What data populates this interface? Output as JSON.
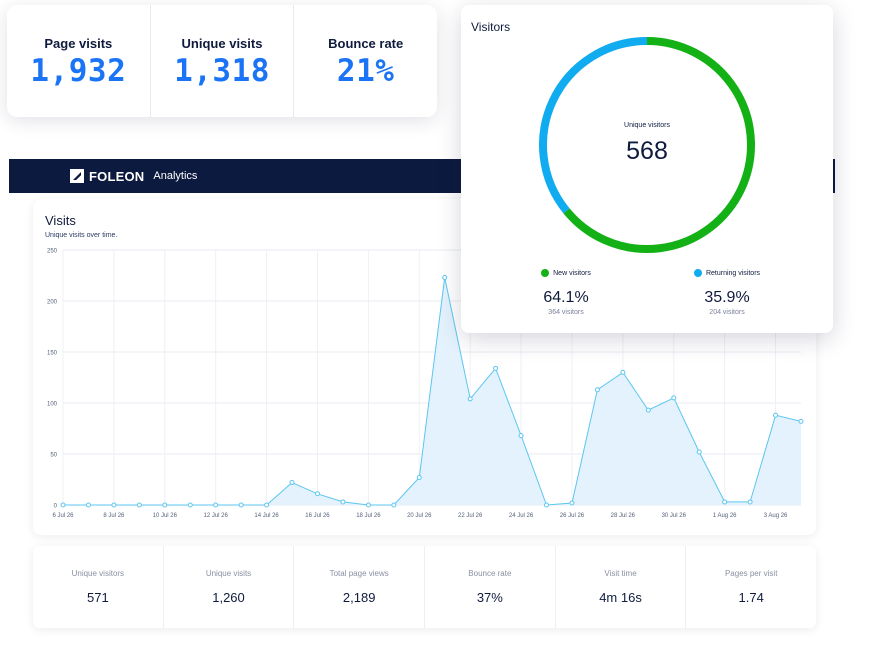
{
  "top_stats": [
    {
      "label": "Page visits",
      "value": "1,932"
    },
    {
      "label": "Unique visits",
      "value": "1,318"
    },
    {
      "label": "Bounce rate",
      "value": "21%"
    }
  ],
  "app_bar": {
    "brand": "FOLEON",
    "section": "Analytics"
  },
  "visits": {
    "title": "Visits",
    "subtitle": "Unique visits over time."
  },
  "visitors": {
    "title": "Visitors",
    "center_label": "Unique visitors",
    "center_value": "568",
    "legend": [
      {
        "label": "New visitors",
        "percent": "64.1%",
        "count": "364 visitors",
        "color": "#13b116"
      },
      {
        "label": "Returning visitors",
        "percent": "35.9%",
        "count": "204 visitors",
        "color": "#11acf0"
      }
    ]
  },
  "bottom_stats": [
    {
      "label": "Unique visitors",
      "value": "571"
    },
    {
      "label": "Unique visits",
      "value": "1,260"
    },
    {
      "label": "Total page views",
      "value": "2,189"
    },
    {
      "label": "Bounce rate",
      "value": "37%"
    },
    {
      "label": "Visit time",
      "value": "4m 16s"
    },
    {
      "label": "Pages per visit",
      "value": "1.74"
    }
  ],
  "colors": {
    "accent": "#1b74f5",
    "navy": "#0d1a3f",
    "line": "#5cc6f0",
    "area": "#e3f2fc",
    "new": "#13b116",
    "returning": "#11acf0"
  },
  "chart_data": {
    "type": "area",
    "title": "Visits",
    "subtitle": "Unique visits over time.",
    "xlabel": "",
    "ylabel": "",
    "ylim": [
      0,
      250
    ],
    "yticks": [
      0,
      50,
      100,
      150,
      200,
      250
    ],
    "x_tick_labels": [
      "6 Jul 26",
      "8 Jul 26",
      "10 Jul 26",
      "12 Jul 26",
      "14 Jul 26",
      "16 Jul 26",
      "18 Jul 26",
      "20 Jul 26",
      "22 Jul 26",
      "24 Jul 26",
      "26 Jul 26",
      "28 Jul 26",
      "30 Jul 26",
      "1 Aug 26",
      "3 Aug 26"
    ],
    "x": [
      "6 Jul 26",
      "7 Jul 26",
      "8 Jul 26",
      "9 Jul 26",
      "10 Jul 26",
      "11 Jul 26",
      "12 Jul 26",
      "13 Jul 26",
      "14 Jul 26",
      "15 Jul 26",
      "16 Jul 26",
      "17 Jul 26",
      "18 Jul 26",
      "19 Jul 26",
      "20 Jul 26",
      "21 Jul 26",
      "22 Jul 26",
      "23 Jul 26",
      "24 Jul 26",
      "25 Jul 26",
      "26 Jul 26",
      "27 Jul 26",
      "28 Jul 26",
      "29 Jul 26",
      "30 Jul 26",
      "31 Jul 26",
      "1 Aug 26",
      "2 Aug 26",
      "3 Aug 26",
      "4 Aug 26"
    ],
    "values": [
      0,
      0,
      0,
      0,
      0,
      0,
      0,
      0,
      0,
      22,
      11,
      3,
      0,
      0,
      27,
      223,
      104,
      134,
      68,
      0,
      2,
      113,
      130,
      93,
      105,
      52,
      3,
      3,
      88,
      82
    ],
    "grid": true
  },
  "donut_data": {
    "type": "pie",
    "series": [
      {
        "name": "New visitors",
        "value": 64.1
      },
      {
        "name": "Returning visitors",
        "value": 35.9
      }
    ]
  }
}
